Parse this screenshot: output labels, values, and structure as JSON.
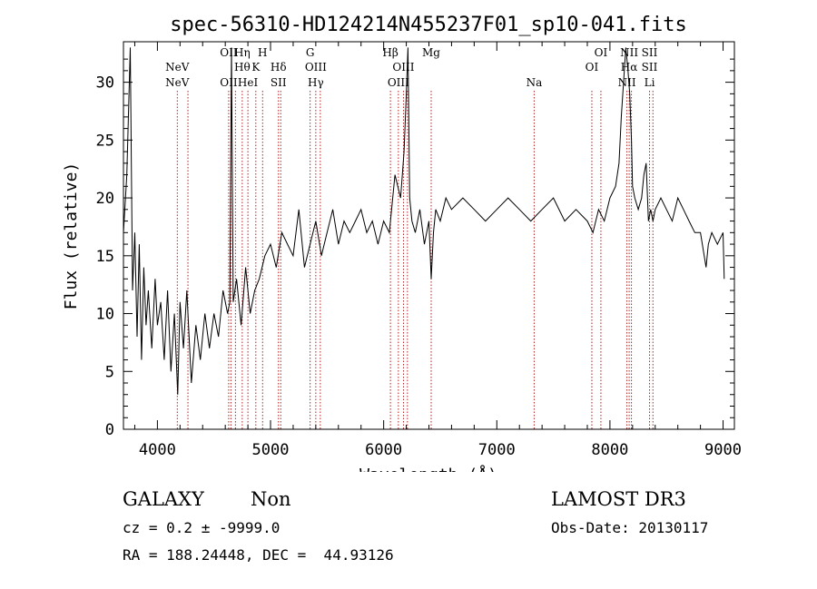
{
  "chart_data": {
    "type": "line",
    "title": "spec-56310-HD124214N455237F01_sp10-041.fits",
    "xlabel": "Wavelength (Å)",
    "ylabel": "Flux (relative)",
    "xlim": [
      3700,
      9100
    ],
    "ylim": [
      0,
      33.5
    ],
    "x_ticks": [
      4000,
      5000,
      6000,
      7000,
      8000,
      9000
    ],
    "x_tick_labels": [
      "4000",
      "5000",
      "6000",
      "7000",
      "8000",
      "9000"
    ],
    "y_ticks": [
      0,
      5,
      10,
      15,
      20,
      25,
      30
    ],
    "y_tick_labels": [
      "0",
      "5",
      "10",
      "15",
      "20",
      "25",
      "30"
    ],
    "grid": false,
    "legend": "none",
    "line_color": "#000000",
    "marker_color": "#b22222",
    "series": [
      {
        "x": [
          3700,
          3730,
          3760,
          3780,
          3800,
          3820,
          3840,
          3860,
          3880,
          3900,
          3920,
          3950,
          3980,
          4000,
          4030,
          4060,
          4090,
          4120,
          4150,
          4180,
          4200,
          4230,
          4260,
          4300,
          4340,
          4380,
          4420,
          4460,
          4500,
          4540,
          4580,
          4620,
          4640,
          4655,
          4670,
          4700,
          4740,
          4780,
          4820,
          4860,
          4900,
          4950,
          5000,
          5050,
          5100,
          5150,
          5200,
          5250,
          5300,
          5350,
          5400,
          5450,
          5500,
          5550,
          5600,
          5650,
          5700,
          5750,
          5800,
          5850,
          5900,
          5950,
          6000,
          6050,
          6100,
          6150,
          6180,
          6200,
          6215,
          6230,
          6250,
          6280,
          6320,
          6360,
          6400,
          6420,
          6440,
          6460,
          6500,
          6550,
          6600,
          6700,
          6800,
          6900,
          7000,
          7100,
          7200,
          7300,
          7400,
          7500,
          7600,
          7700,
          7800,
          7850,
          7900,
          7950,
          8000,
          8050,
          8080,
          8100,
          8120,
          8140,
          8160,
          8175,
          8190,
          8200,
          8220,
          8250,
          8280,
          8300,
          8320,
          8340,
          8360,
          8380,
          8400,
          8450,
          8500,
          8550,
          8600,
          8650,
          8700,
          8750,
          8800,
          8850,
          8870,
          8900,
          8950,
          9000,
          9010
        ],
        "y": [
          17,
          22,
          33,
          12,
          17,
          8,
          16,
          6,
          14,
          9,
          12,
          7,
          13,
          9,
          11,
          6,
          12,
          5,
          10,
          3,
          11,
          7,
          12,
          4,
          9,
          6,
          10,
          7,
          10,
          8,
          12,
          10,
          11,
          33,
          11,
          13,
          9,
          14,
          10,
          12,
          13,
          15,
          16,
          14,
          17,
          16,
          15,
          19,
          14,
          16,
          18,
          15,
          17,
          19,
          16,
          18,
          17,
          18,
          19,
          17,
          18,
          16,
          18,
          17,
          22,
          20,
          24,
          29,
          33,
          20,
          18,
          17,
          19,
          16,
          18,
          13,
          17,
          19,
          18,
          20,
          19,
          20,
          19,
          18,
          19,
          20,
          19,
          18,
          19,
          20,
          18,
          19,
          18,
          17,
          19,
          18,
          20,
          21,
          23,
          27,
          30,
          33,
          31,
          29,
          25,
          21,
          20,
          19,
          20,
          22,
          23,
          18,
          19,
          18,
          19,
          20,
          19,
          18,
          20,
          19,
          18,
          17,
          17,
          14,
          16,
          17,
          16,
          17,
          13
        ]
      }
    ],
    "line_markers": [
      {
        "x": 4176,
        "top": "",
        "mid": "NeV",
        "bot": "NeV"
      },
      {
        "x": 4270,
        "top": "",
        "mid": "",
        "bot": ""
      },
      {
        "x": 4630,
        "top": "OII",
        "mid": "",
        "bot": "OII"
      },
      {
        "x": 4650,
        "top": "",
        "mid": "",
        "bot": ""
      },
      {
        "x": 4690,
        "top": "",
        "mid": "",
        "bot": ""
      },
      {
        "x": 4750,
        "top": "Hη",
        "mid": "Hθ",
        "bot": ""
      },
      {
        "x": 4800,
        "top": "",
        "mid": "",
        "bot": "HeI"
      },
      {
        "x": 4870,
        "top": "",
        "mid": "K",
        "bot": ""
      },
      {
        "x": 4930,
        "top": "H",
        "mid": "",
        "bot": ""
      },
      {
        "x": 5070,
        "top": "",
        "mid": "Hδ",
        "bot": "SII"
      },
      {
        "x": 5090,
        "top": "",
        "mid": "",
        "bot": ""
      },
      {
        "x": 5350,
        "top": "G",
        "mid": "",
        "bot": ""
      },
      {
        "x": 5400,
        "top": "",
        "mid": "OIII",
        "bot": "Hγ"
      },
      {
        "x": 5440,
        "top": "",
        "mid": "",
        "bot": ""
      },
      {
        "x": 6060,
        "top": "Hβ",
        "mid": "",
        "bot": ""
      },
      {
        "x": 6130,
        "top": "",
        "mid": "",
        "bot": "OIII"
      },
      {
        "x": 6175,
        "top": "",
        "mid": "OIII",
        "bot": ""
      },
      {
        "x": 6210,
        "top": "",
        "mid": "",
        "bot": ""
      },
      {
        "x": 6420,
        "top": "Mg",
        "mid": "",
        "bot": ""
      },
      {
        "x": 7330,
        "top": "",
        "mid": "",
        "bot": "Na"
      },
      {
        "x": 7840,
        "top": "",
        "mid": "OI",
        "bot": ""
      },
      {
        "x": 7920,
        "top": "OI",
        "mid": "",
        "bot": ""
      },
      {
        "x": 8150,
        "top": "",
        "mid": "",
        "bot": "NII"
      },
      {
        "x": 8170,
        "top": "NII",
        "mid": "Hα",
        "bot": ""
      },
      {
        "x": 8190,
        "top": "",
        "mid": "",
        "bot": ""
      },
      {
        "x": 8350,
        "top": "SII",
        "mid": "SII",
        "bot": "Li"
      },
      {
        "x": 8380,
        "top": "",
        "mid": "",
        "bot": ""
      }
    ]
  },
  "footer": {
    "object_class": "GALAXY",
    "subclass": "Non",
    "survey": "LAMOST DR3",
    "redshift": "cz = 0.2 ± -9999.0",
    "obs_date": "Obs-Date: 20130117",
    "coords": "RA = 188.24448, DEC =  44.93126"
  }
}
